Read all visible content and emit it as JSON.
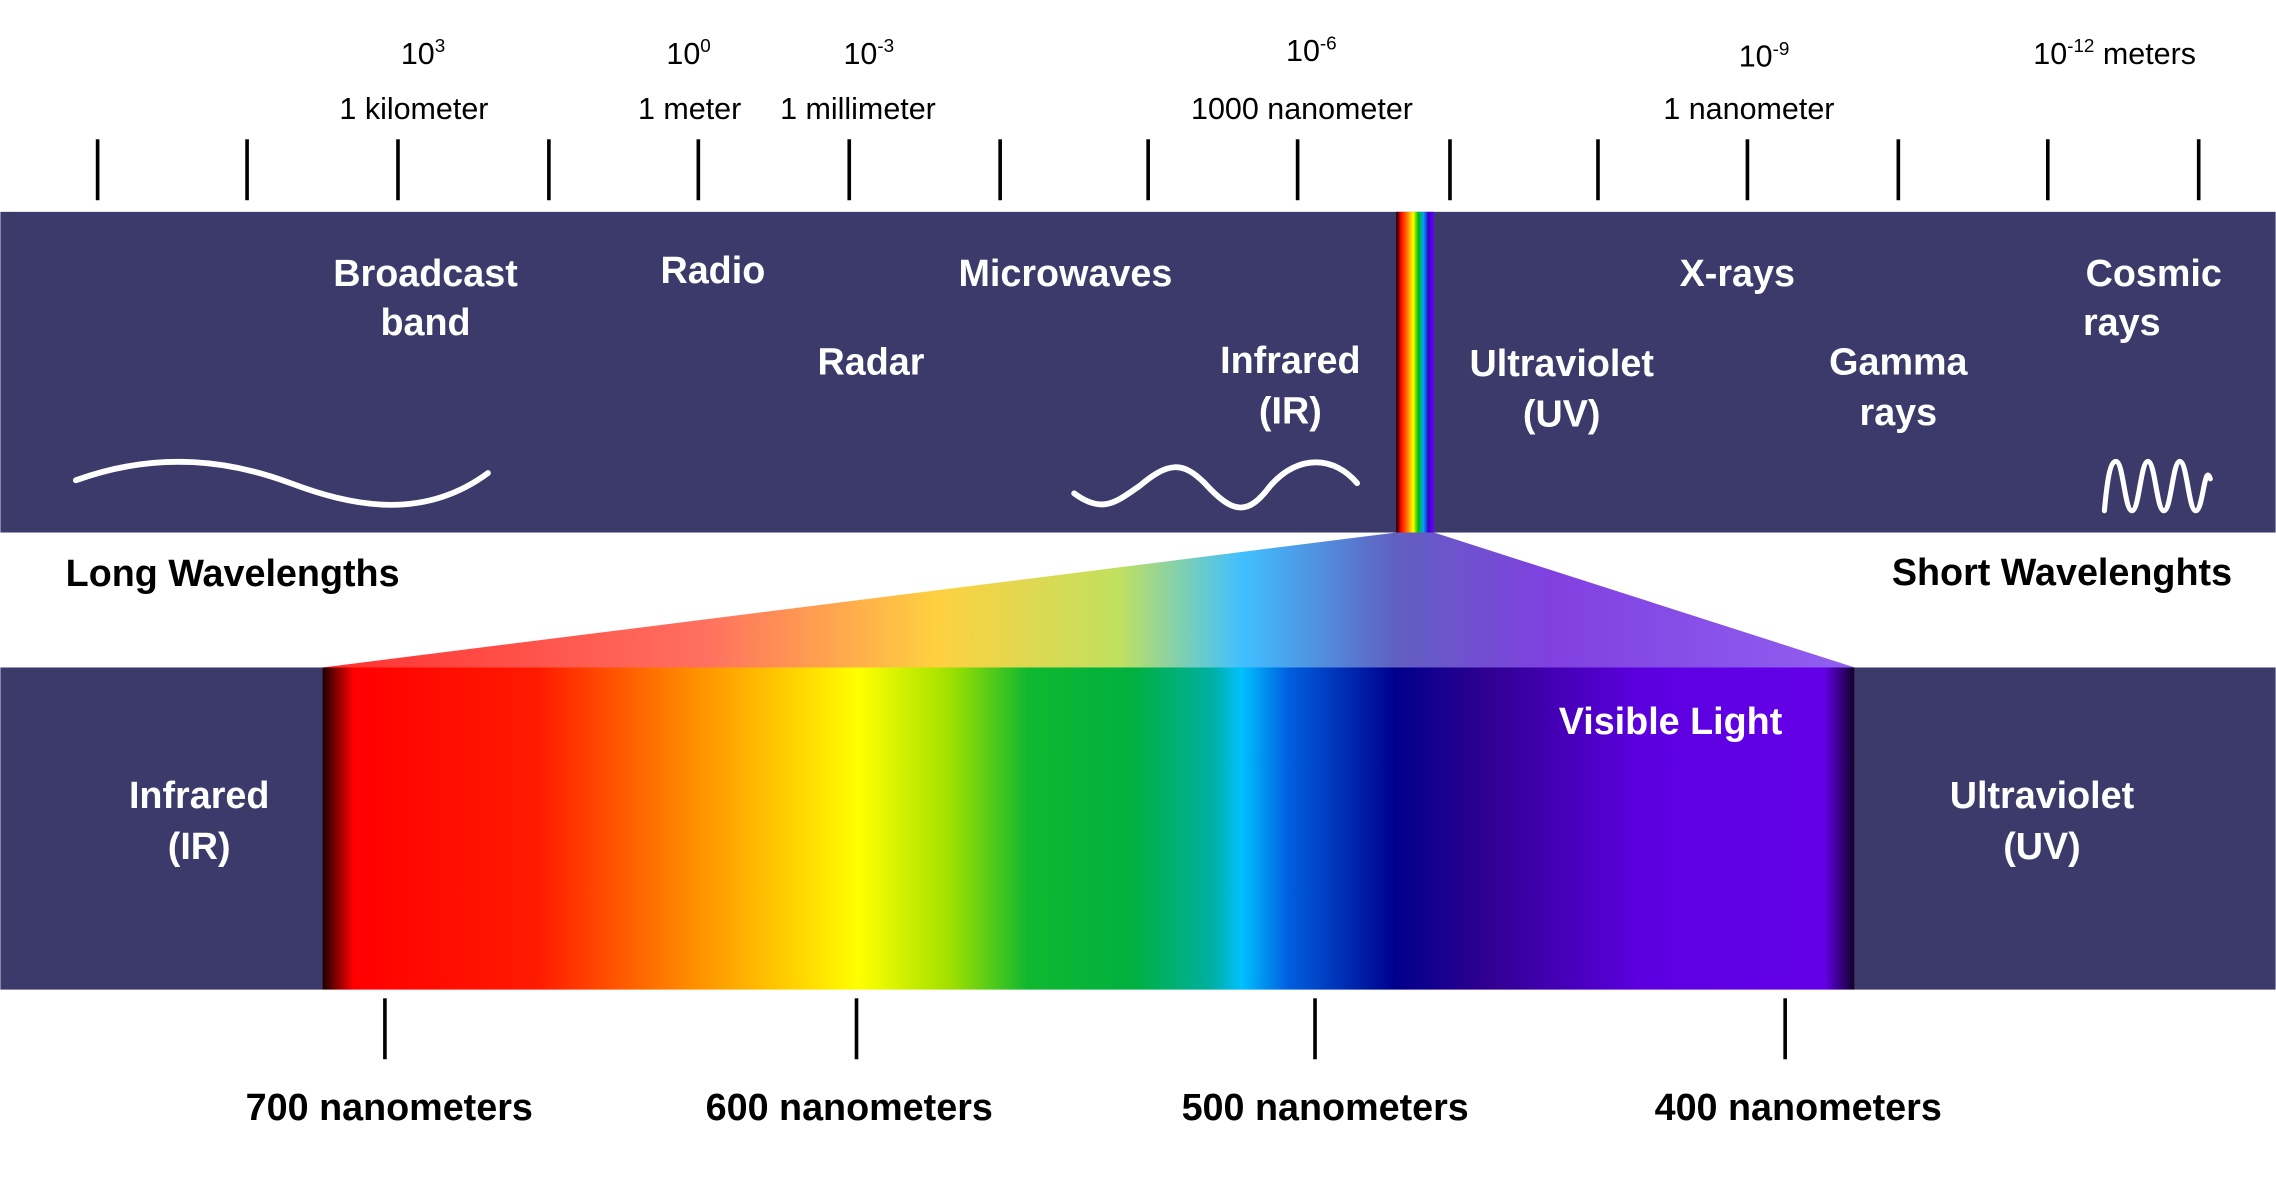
{
  "colors": {
    "band": "#3b3a6a",
    "background": "#ffffff",
    "text_on_band": "#ffffff"
  },
  "scale": {
    "exponents": [
      {
        "base": "10",
        "exp": "3",
        "suffix": ""
      },
      {
        "base": "10",
        "exp": "0",
        "suffix": ""
      },
      {
        "base": "10",
        "exp": "-3",
        "suffix": ""
      },
      {
        "base": "10",
        "exp": "-6",
        "suffix": ""
      },
      {
        "base": "10",
        "exp": "-9",
        "suffix": ""
      },
      {
        "base": "10",
        "exp": "-12",
        "suffix": " meters"
      }
    ],
    "names": [
      "1 kilometer",
      "1 meter",
      "1 millimeter",
      "1000 nanometer",
      "1 nanometer"
    ]
  },
  "bands": {
    "broadcast": [
      "Broadcast",
      "band"
    ],
    "radio": "Radio",
    "microwaves": "Microwaves",
    "radar": "Radar",
    "infrared": [
      "Infrared",
      "(IR)"
    ],
    "ultraviolet": [
      "Ultraviolet",
      "(UV)"
    ],
    "xrays": "X-rays",
    "gamma": [
      "Gamma",
      "rays"
    ],
    "cosmic": [
      "Cosmic",
      "rays"
    ]
  },
  "long_label": "Long Wavelengths",
  "short_label": "Short Wavelenghts",
  "visible": {
    "title": "Visible Light",
    "left": [
      "Infrared",
      "(IR)"
    ],
    "right": [
      "Ultraviolet",
      "(UV)"
    ],
    "ticks": [
      "700 nanometers",
      "600 nanometers",
      "500 nanometers",
      "400 nanometers"
    ]
  }
}
